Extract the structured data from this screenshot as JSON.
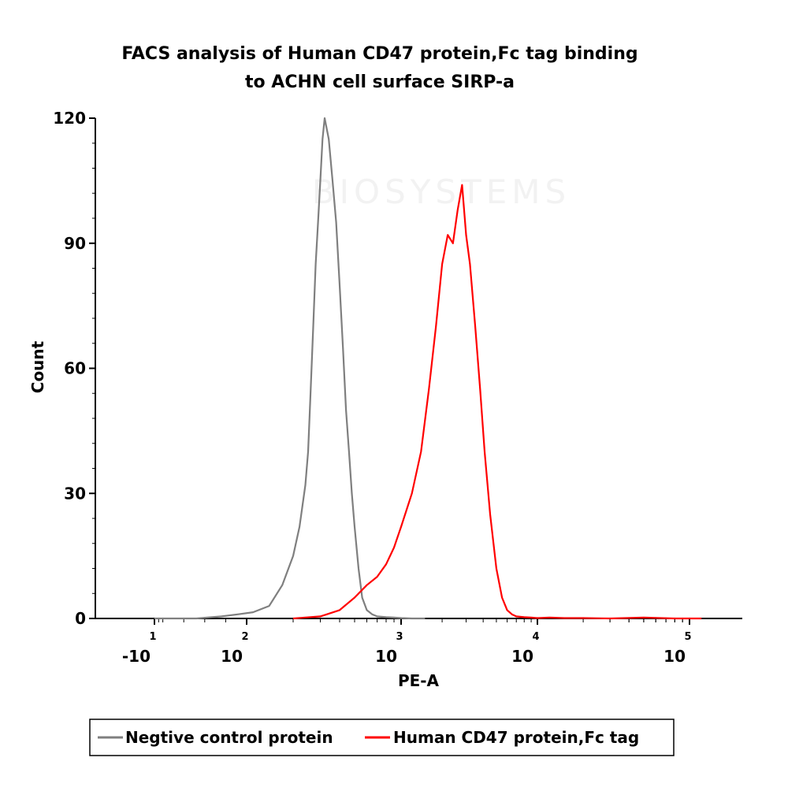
{
  "chart_data": {
    "type": "line",
    "title_lines": [
      "FACS analysis of Human CD47 protein,Fc tag binding",
      "to ACHN cell surface SIRP-a"
    ],
    "xlabel": "PE-A",
    "ylabel": "Count",
    "x_scale": "biexponential",
    "y_ticks": [
      {
        "value": 0,
        "label": "0"
      },
      {
        "value": 30,
        "label": "30"
      },
      {
        "value": 60,
        "label": "60"
      },
      {
        "value": 90,
        "label": "90"
      },
      {
        "value": 120,
        "label": "120"
      }
    ],
    "x_ticks": [
      {
        "value": -10,
        "base": "-10",
        "exp": "1"
      },
      {
        "value": 100,
        "base": "10",
        "exp": "2"
      },
      {
        "value": 1000,
        "base": "10",
        "exp": "3"
      },
      {
        "value": 10000,
        "base": "10",
        "exp": "4"
      },
      {
        "value": 100000,
        "base": "10",
        "exp": "5"
      }
    ],
    "ylim": [
      0,
      120
    ],
    "grid": false,
    "legend_position": "bottom",
    "watermark": "BIOSYSTEMS",
    "series": [
      {
        "name": "Negtive control protein",
        "color": "#7f7f7f",
        "x": [
          -10,
          40,
          70,
          90,
          110,
          140,
          170,
          200,
          220,
          240,
          250,
          260,
          270,
          280,
          290,
          300,
          310,
          320,
          340,
          360,
          380,
          400,
          420,
          440,
          460,
          480,
          500,
          530,
          560,
          600,
          650,
          700,
          800,
          900,
          1000,
          1200,
          1500
        ],
        "y": [
          0,
          0,
          0.5,
          1,
          1.5,
          3,
          8,
          15,
          22,
          32,
          40,
          55,
          70,
          85,
          95,
          105,
          115,
          120,
          115,
          105,
          95,
          80,
          65,
          50,
          40,
          30,
          22,
          12,
          5,
          2,
          1,
          0.5,
          0.3,
          0.2,
          0.1,
          0,
          0
        ]
      },
      {
        "name": "Human CD47 protein,Fc tag",
        "color": "#ff0000",
        "x": [
          200,
          300,
          400,
          500,
          600,
          700,
          800,
          900,
          1000,
          1200,
          1400,
          1600,
          1800,
          2000,
          2200,
          2400,
          2600,
          2800,
          3000,
          3200,
          3500,
          3800,
          4100,
          4500,
          5000,
          5500,
          6000,
          6500,
          7000,
          8000,
          9000,
          10000,
          12000,
          15000,
          20000,
          30000,
          50000,
          80000,
          120000
        ],
        "y": [
          0,
          0.5,
          2,
          5,
          8,
          10,
          13,
          17,
          22,
          30,
          40,
          55,
          70,
          85,
          92,
          90,
          98,
          104,
          92,
          85,
          70,
          55,
          40,
          25,
          12,
          5,
          2,
          1,
          0.5,
          0.3,
          0.2,
          0.1,
          0.2,
          0.1,
          0.1,
          0,
          0.2,
          0,
          0
        ]
      }
    ]
  }
}
